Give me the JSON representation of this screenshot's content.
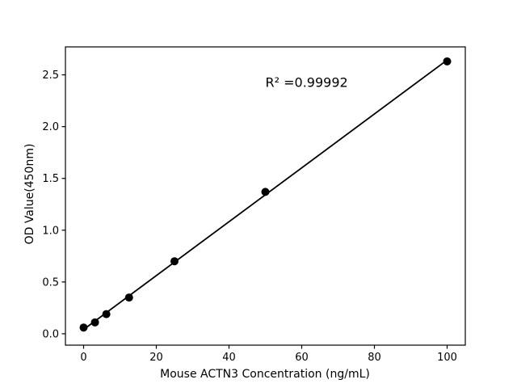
{
  "chart_data": {
    "type": "scatter",
    "title": "",
    "xlabel": "Mouse ACTN3 Concentration (ng/mL)",
    "ylabel": "OD Value(450nm)",
    "annotation": {
      "text": "R² =0.99992",
      "x": 50,
      "y": 2.43
    },
    "x": [
      0,
      3.125,
      6.25,
      12.5,
      25,
      50,
      100
    ],
    "y": [
      0.06,
      0.11,
      0.19,
      0.35,
      0.7,
      1.37,
      2.63
    ],
    "fit_line": true,
    "xlim": [
      -5,
      105
    ],
    "ylim": [
      -0.11,
      2.77
    ],
    "x_ticks": [
      0,
      20,
      40,
      60,
      80,
      100
    ],
    "x_tick_labels": [
      "0",
      "20",
      "40",
      "60",
      "80",
      "100"
    ],
    "y_ticks": [
      0,
      0.5,
      1,
      1.5,
      2,
      2.5
    ],
    "y_tick_labels": [
      "0.0",
      "0.5",
      "1.0",
      "1.5",
      "2.0",
      "2.5"
    ],
    "grid": false,
    "legend": null,
    "colors": {
      "marker": "#000000",
      "line": "#000000",
      "axis": "#000000",
      "text": "#000000",
      "background": "#ffffff"
    }
  }
}
